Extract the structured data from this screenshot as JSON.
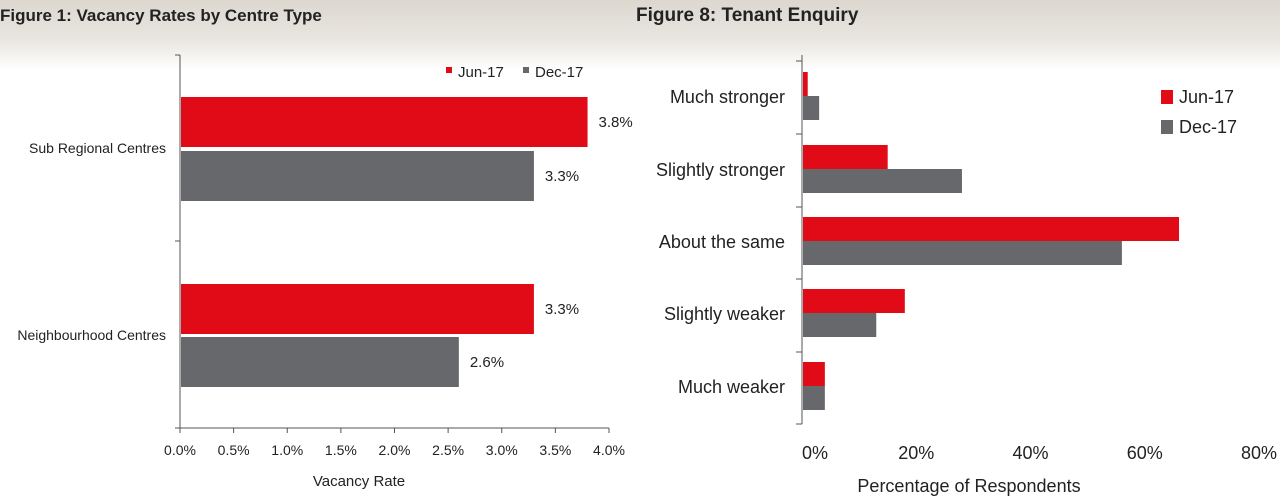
{
  "colors": {
    "jun": "#e00b17",
    "dec": "#67686b",
    "axis": "#555555"
  },
  "chart_data": [
    {
      "type": "bar",
      "orientation": "horizontal",
      "title": "Figure 1: Vacancy Rates by Centre Type",
      "categories": [
        "Sub Regional Centres",
        "Neighbourhood Centres"
      ],
      "series": [
        {
          "name": "Jun-17",
          "values": [
            3.8,
            3.3
          ],
          "labels": [
            "3.8%",
            "3.3%"
          ]
        },
        {
          "name": "Dec-17",
          "values": [
            3.3,
            2.6
          ],
          "labels": [
            "3.3%",
            "2.6%"
          ]
        }
      ],
      "xlabel": "Vacancy Rate",
      "ylabel": "",
      "xlim": [
        0,
        4
      ],
      "xticks": [
        0,
        0.5,
        1,
        1.5,
        2,
        2.5,
        3,
        3.5,
        4
      ],
      "xtick_labels": [
        "0.0%",
        "0.5%",
        "1.0%",
        "1.5%",
        "2.0%",
        "2.5%",
        "3.0%",
        "3.5%",
        "4.0%"
      ],
      "legend_position": "top-right",
      "grid": false
    },
    {
      "type": "bar",
      "orientation": "horizontal",
      "title": "Figure 8: Tenant Enquiry",
      "categories": [
        "Much stronger",
        "Slightly stronger",
        "About the same",
        "Slightly weaker",
        "Much weaker"
      ],
      "series": [
        {
          "name": "Jun-17",
          "values": [
            1,
            15,
            66,
            18,
            4
          ]
        },
        {
          "name": "Dec-17",
          "values": [
            3,
            28,
            56,
            13,
            4
          ]
        }
      ],
      "xlabel": "Percentage of Respondents",
      "ylabel": "",
      "xlim": [
        0,
        80
      ],
      "xticks": [
        0,
        20,
        40,
        60,
        80
      ],
      "xtick_labels": [
        "0%",
        "20%",
        "40%",
        "60%",
        "80%"
      ],
      "legend_position": "top-right",
      "grid": false
    }
  ]
}
